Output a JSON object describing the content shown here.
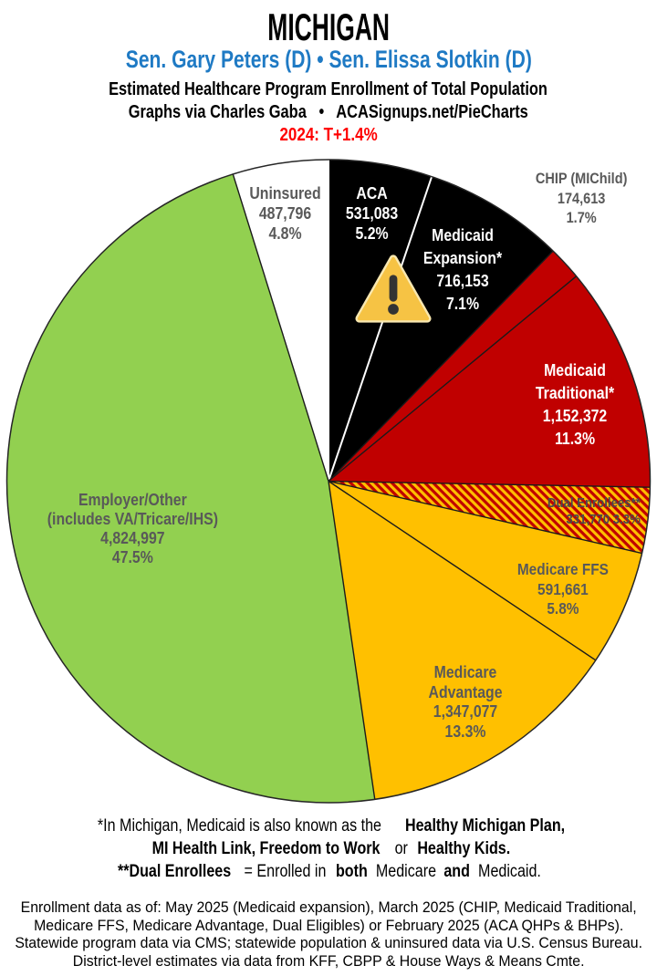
{
  "header": {
    "state": "MICHIGAN",
    "senators": "Sen. Gary Peters (D) • Sen. Elissa Slotkin (D)",
    "subtitle1": "Estimated Healthcare Program Enrollment of Total Population",
    "subtitle2": "Graphs via Charles Gaba   •   ACASignups.net/PieCharts",
    "partisan_lean": "2024: T+1.4%",
    "colors": {
      "senators_text": "#1F7AC4",
      "lean_text": "#FF0000"
    }
  },
  "chart_data": {
    "type": "pie",
    "title": "Estimated Healthcare Program Enrollment of Total Population",
    "start_angle_deg": 0,
    "direction": "clockwise",
    "total_percent": 100.0,
    "slices": [
      {
        "id": "aca",
        "label": "ACA",
        "value": 531083,
        "percent": 5.2,
        "fill": "#000000",
        "edge": "#FFFFFF",
        "lines": [
          "ACA",
          "531,083",
          "5.2%"
        ]
      },
      {
        "id": "medicaid-expansion",
        "label": "Medicaid Expansion*",
        "value": 716153,
        "percent": 7.1,
        "fill": "#000000",
        "edge": "#FFFFFF",
        "lines": [
          "Medicaid",
          "Expansion*",
          "716,153",
          "7.1%"
        ]
      },
      {
        "id": "chip",
        "label": "CHIP (MIChild)",
        "value": 174613,
        "percent": 1.7,
        "fill": "#C00000",
        "edge": "#1a1a1a",
        "lines": [
          "CHIP (MIChild)",
          "174,613",
          "1.7%"
        ]
      },
      {
        "id": "medicaid-traditional",
        "label": "Medicaid Traditional*",
        "value": 1152372,
        "percent": 11.3,
        "fill": "#C00000",
        "edge": "#1a1a1a",
        "lines": [
          "Medicaid",
          "Traditional*",
          "1,152,372",
          "11.3%"
        ]
      },
      {
        "id": "dual-enrollees",
        "label": "Dual Enrollees**",
        "value": 331770,
        "percent": 3.3,
        "fill": "hatch",
        "edge": "#1a1a1a",
        "lines": [
          "Dual Enrollees**",
          "331,770 3.3%"
        ]
      },
      {
        "id": "medicare-ffs",
        "label": "Medicare FFS",
        "value": 591661,
        "percent": 5.8,
        "fill": "#FFC000",
        "edge": "#1a1a1a",
        "lines": [
          "Medicare FFS",
          "591,661",
          "5.8%"
        ]
      },
      {
        "id": "medicare-advantage",
        "label": "Medicare Advantage",
        "value": 1347077,
        "percent": 13.3,
        "fill": "#FFC000",
        "edge": "#1a1a1a",
        "lines": [
          "Medicare",
          "Advantage",
          "1,347,077",
          "13.3%"
        ]
      },
      {
        "id": "employer-other",
        "label": "Employer/Other (includes VA/Tricare/IHS)",
        "value": 4824997,
        "percent": 47.5,
        "fill": "#92D050",
        "edge": "#1a1a1a",
        "lines": [
          "Employer/Other",
          "(includes VA/Tricare/IHS)",
          "4,824,997",
          "47.5%"
        ]
      },
      {
        "id": "uninsured",
        "label": "Uninsured",
        "value": 487796,
        "percent": 4.8,
        "fill": "#FFFFFF",
        "edge": "#1a1a1a",
        "lines": [
          "Uninsured",
          "487,796",
          "4.8%"
        ]
      }
    ],
    "hatch_colors": [
      "#C00000",
      "#FFC000"
    ],
    "legend": "labels on slices",
    "icon": "warning-icon"
  },
  "footnotes": {
    "line1": [
      {
        "t": "*In Michigan, Medicaid is also known as the "
      },
      {
        "t": "Healthy Michigan Plan,",
        "b": true
      }
    ],
    "line2": [
      {
        "t": "MI Health Link, Freedom to Work",
        "b": true
      },
      {
        "t": " or "
      },
      {
        "t": "Healthy Kids.",
        "b": true
      }
    ],
    "line3": [
      {
        "t": "**Dual Enrollees",
        "b": true
      },
      {
        "t": " = Enrolled in "
      },
      {
        "t": "both",
        "b": true
      },
      {
        "t": " Medicare "
      },
      {
        "t": "and",
        "b": true
      },
      {
        "t": " Medicaid."
      }
    ]
  },
  "source": {
    "lines": [
      "Enrollment data as of: May 2025 (Medicaid expansion), March 2025 (CHIP, Medicaid Traditional,",
      "Medicare FFS, Medicare Advantage, Dual Eligibles) or February 2025 (ACA QHPs & BHPs).",
      "Statewide program data via CMS; statewide population & uninsured data via U.S. Census Bureau.",
      "District-level estimates via data from KFF, CBPP & House Ways & Means Cmte."
    ]
  }
}
